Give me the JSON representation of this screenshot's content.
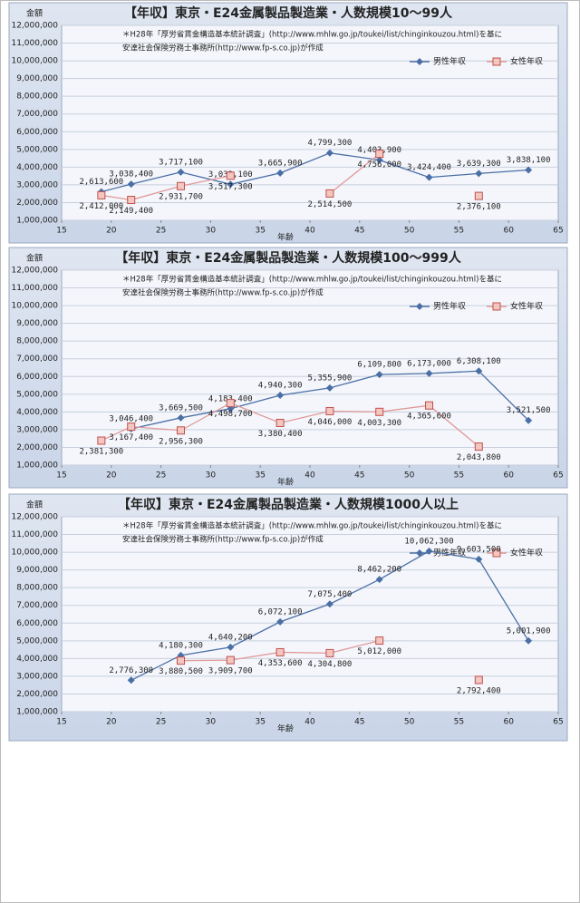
{
  "chart_data": [
    {
      "type": "line",
      "title": "【年収】東京・E24金属製品製造業・人数規模10～99人",
      "notes": [
        "＊H28年「厚労省賃金構造基本統計調査」(http://www.mhlw.go.jp/toukei/list/chinginkouzou.html)を基に",
        "安達社会保険労務士事務所(http://www.fp-s.co.jp)が作成"
      ],
      "y_label": "金額",
      "x_label": "年齢",
      "legend": "upper right",
      "grid": true,
      "x": [
        19,
        22,
        27,
        32,
        37,
        42,
        47,
        52,
        57,
        62
      ],
      "xlim": [
        15,
        65
      ],
      "xticks": [
        15,
        20,
        25,
        30,
        35,
        40,
        45,
        50,
        55,
        60,
        65
      ],
      "ylim": [
        1000000,
        12000000
      ],
      "yticks": [
        {
          "value": 1000000,
          "label": "1,000,000"
        },
        {
          "value": 2000000,
          "label": "2,000,000"
        },
        {
          "value": 3000000,
          "label": "3,000,000"
        },
        {
          "value": 4000000,
          "label": "4,000,000"
        },
        {
          "value": 5000000,
          "label": "5,000,000"
        },
        {
          "value": 6000000,
          "label": "6,000,000"
        },
        {
          "value": 7000000,
          "label": "7,000,000"
        },
        {
          "value": 8000000,
          "label": "8,000,000"
        },
        {
          "value": 9000000,
          "label": "9,000,000"
        },
        {
          "value": 10000000,
          "label": "10,000,000"
        },
        {
          "value": 11000000,
          "label": "11,000,000"
        },
        {
          "value": 12000000,
          "label": "12,000,000"
        }
      ],
      "series": [
        {
          "name": "男性年収",
          "color": "#4a6fa5",
          "values": [
            2613600,
            3038400,
            3717100,
            3032100,
            3665900,
            4799300,
            4403900,
            3424400,
            3639300,
            3838100
          ],
          "value_labels": [
            "2,613,600",
            "3,038,400",
            "3,717,100",
            "3,032,100",
            "3,665,900",
            "4,799,300",
            "4,403,900",
            "3,424,400",
            "3,639,300",
            "3,838,100"
          ]
        },
        {
          "name": "女性年収",
          "color": "#e09a9a",
          "values": [
            2412000,
            2149400,
            2931700,
            3517300,
            null,
            2514500,
            4756000,
            null,
            2376100,
            null
          ],
          "value_labels": [
            "2,412,000",
            "2,149,400",
            "2,931,700",
            "3,517,300",
            null,
            "2,514,500",
            "4,756,000",
            null,
            "2,376,100",
            null
          ]
        }
      ]
    },
    {
      "type": "line",
      "title": "【年収】東京・E24金属製品製造業・人数規模100～999人",
      "notes": [
        "＊H28年「厚労省賃金構造基本統計調査」(http://www.mhlw.go.jp/toukei/list/chinginkouzou.html)を基に",
        "安達社会保険労務士事務所(http://www.fp-s.co.jp)が作成"
      ],
      "y_label": "金額",
      "x_label": "年齢",
      "legend": "upper right",
      "grid": true,
      "x": [
        19,
        22,
        27,
        32,
        37,
        42,
        47,
        52,
        57,
        62
      ],
      "xlim": [
        15,
        65
      ],
      "xticks": [
        15,
        20,
        25,
        30,
        35,
        40,
        45,
        50,
        55,
        60,
        65
      ],
      "ylim": [
        1000000,
        12000000
      ],
      "yticks": [
        {
          "value": 1000000,
          "label": "1,000,000"
        },
        {
          "value": 2000000,
          "label": "2,000,000"
        },
        {
          "value": 3000000,
          "label": "3,000,000"
        },
        {
          "value": 4000000,
          "label": "4,000,000"
        },
        {
          "value": 5000000,
          "label": "5,000,000"
        },
        {
          "value": 6000000,
          "label": "6,000,000"
        },
        {
          "value": 7000000,
          "label": "7,000,000"
        },
        {
          "value": 8000000,
          "label": "8,000,000"
        },
        {
          "value": 9000000,
          "label": "9,000,000"
        },
        {
          "value": 10000000,
          "label": "10,000,000"
        },
        {
          "value": 11000000,
          "label": "11,000,000"
        },
        {
          "value": 12000000,
          "label": "12,000,000"
        }
      ],
      "series": [
        {
          "name": "男性年収",
          "color": "#4a6fa5",
          "values": [
            null,
            3046400,
            3669500,
            4183400,
            4940300,
            5355900,
            6109800,
            6173000,
            6308100,
            3521500
          ],
          "value_labels": [
            null,
            "3,046,400",
            "3,669,500",
            "4,183,400",
            "4,940,300",
            "5,355,900",
            "6,109,800",
            "6,173,000",
            "6,308,100",
            "3,521,500"
          ]
        },
        {
          "name": "女性年収",
          "color": "#e09a9a",
          "values": [
            2381300,
            3167400,
            2956300,
            4498700,
            3380400,
            4046000,
            4003300,
            4365600,
            2043800,
            null
          ],
          "value_labels": [
            "2,381,300",
            "3,167,400",
            "2,956,300",
            "4,498,700",
            "3,380,400",
            "4,046,000",
            "4,003,300",
            "4,365,600",
            "2,043,800",
            null
          ]
        }
      ]
    },
    {
      "type": "line",
      "title": "【年収】東京・E24金属製品製造業・人数規模1000人以上",
      "notes": [
        "＊H28年「厚労省賃金構造基本統計調査」(http://www.mhlw.go.jp/toukei/list/chinginkouzou.html)を基に",
        "安達社会保険労務士事務所(http://www.fp-s.co.jp)が作成"
      ],
      "y_label": "金額",
      "x_label": "年齢",
      "legend": "upper right",
      "grid": true,
      "x": [
        19,
        22,
        27,
        32,
        37,
        42,
        47,
        52,
        57,
        62
      ],
      "xlim": [
        15,
        65
      ],
      "xticks": [
        15,
        20,
        25,
        30,
        35,
        40,
        45,
        50,
        55,
        60,
        65
      ],
      "ylim": [
        1000000,
        12000000
      ],
      "yticks": [
        {
          "value": 1000000,
          "label": "1,000,000"
        },
        {
          "value": 2000000,
          "label": "2,000,000"
        },
        {
          "value": 3000000,
          "label": "3,000,000"
        },
        {
          "value": 4000000,
          "label": "4,000,000"
        },
        {
          "value": 5000000,
          "label": "5,000,000"
        },
        {
          "value": 6000000,
          "label": "6,000,000"
        },
        {
          "value": 7000000,
          "label": "7,000,000"
        },
        {
          "value": 8000000,
          "label": "8,000,000"
        },
        {
          "value": 9000000,
          "label": "9,000,000"
        },
        {
          "value": 10000000,
          "label": "10,000,000"
        },
        {
          "value": 11000000,
          "label": "11,000,000"
        },
        {
          "value": 12000000,
          "label": "12,000,000"
        }
      ],
      "series": [
        {
          "name": "男性年収",
          "color": "#4a6fa5",
          "values": [
            null,
            2776300,
            4180300,
            4640200,
            6072100,
            7075400,
            8462200,
            10062300,
            9603500,
            5001900
          ],
          "value_labels": [
            null,
            "2,776,300",
            "4,180,300",
            "4,640,200",
            "6,072,100",
            "7,075,400",
            "8,462,200",
            "10,062,300",
            "9,603,500",
            "5,001,900"
          ]
        },
        {
          "name": "女性年収",
          "color": "#e09a9a",
          "values": [
            null,
            null,
            3880500,
            3909700,
            4353600,
            4304800,
            5012000,
            null,
            2792400,
            null
          ],
          "value_labels": [
            null,
            null,
            "3,880,500",
            "3,909,700",
            "4,353,600",
            "4,304,800",
            "5,012,000",
            null,
            "2,792,400",
            null
          ]
        }
      ]
    }
  ]
}
